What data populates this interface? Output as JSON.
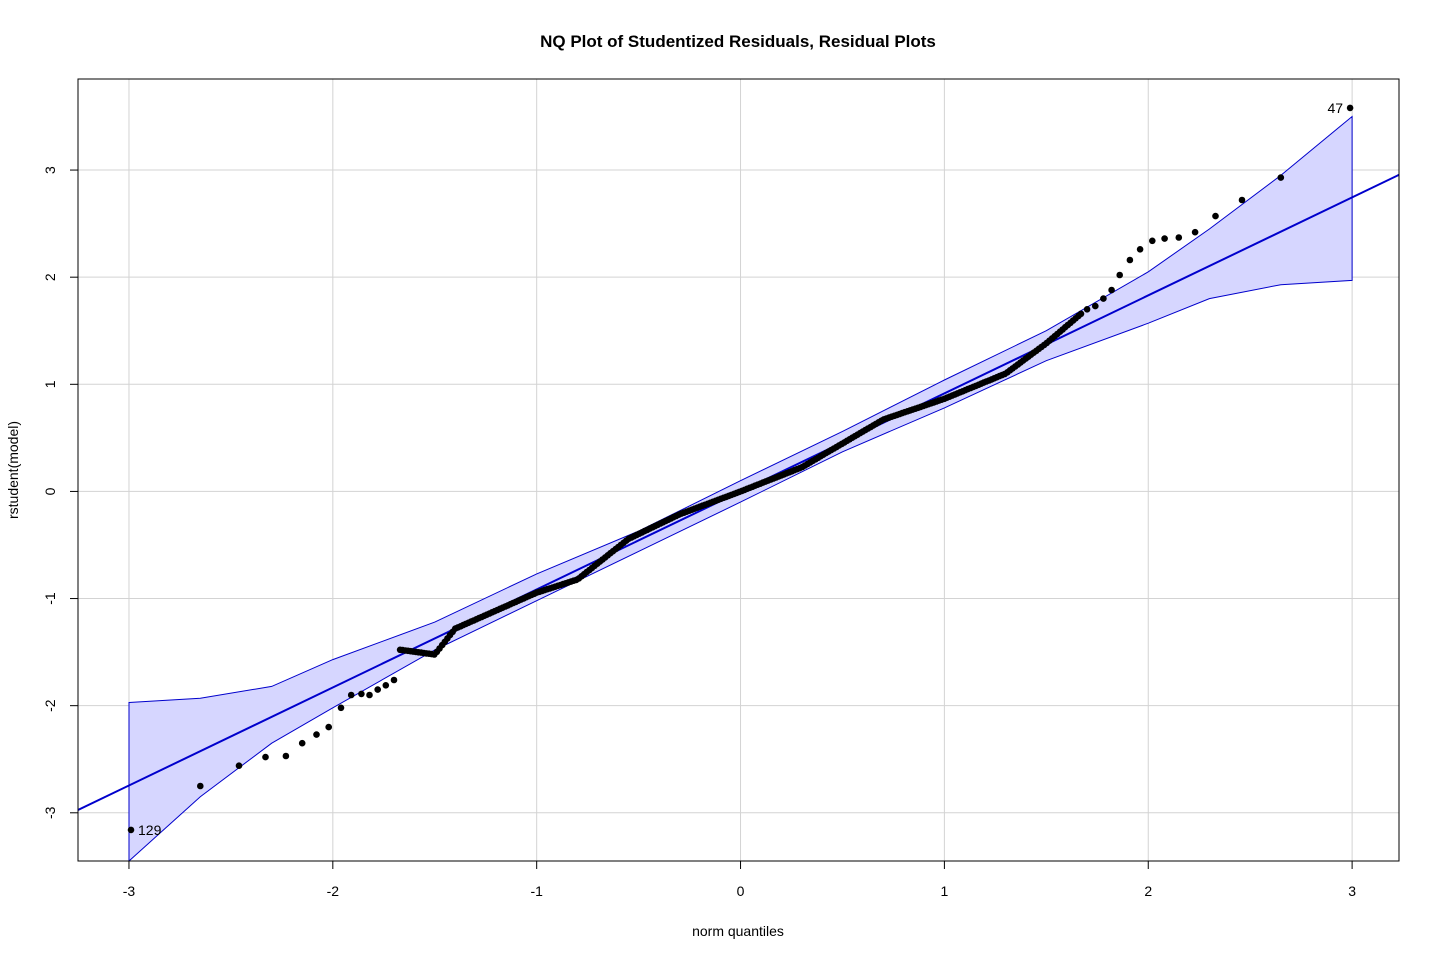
{
  "chart_data": {
    "type": "scatter",
    "title": "NQ Plot of Studentized Residuals, Residual Plots",
    "xlabel": "norm quantiles",
    "ylabel": "rstudent(model)",
    "xlim": [
      -3.25,
      3.23
    ],
    "ylim": [
      -3.45,
      3.85
    ],
    "xticks": [
      -3,
      -2,
      -1,
      0,
      1,
      2,
      3
    ],
    "xtick_labels": [
      "-3",
      "-2",
      "-1",
      "0",
      "1",
      "2",
      "3"
    ],
    "yticks": [
      -3,
      -2,
      -1,
      0,
      1,
      2,
      3
    ],
    "ytick_labels": [
      "-3",
      "-2",
      "-1",
      "0",
      "1",
      "2",
      "3"
    ],
    "grid": true,
    "reference_line": {
      "intercept": 0.0,
      "slope": 0.915,
      "color": "#0000cc"
    },
    "envelope": {
      "color_fill": "#d6d6ff",
      "color_line": "#0000cc",
      "points": [
        {
          "x": -3.0,
          "lower": -3.45,
          "upper": -1.97
        },
        {
          "x": -2.65,
          "lower": -2.85,
          "upper": -1.93
        },
        {
          "x": -2.3,
          "lower": -2.35,
          "upper": -1.82
        },
        {
          "x": -2.0,
          "lower": -2.02,
          "upper": -1.57
        },
        {
          "x": -1.5,
          "lower": -1.48,
          "upper": -1.22
        },
        {
          "x": -1.0,
          "lower": -1.02,
          "upper": -0.77
        },
        {
          "x": -0.5,
          "lower": -0.56,
          "upper": -0.37
        },
        {
          "x": 0.0,
          "lower": -0.1,
          "upper": 0.1
        },
        {
          "x": 0.5,
          "lower": 0.37,
          "upper": 0.56
        },
        {
          "x": 1.0,
          "lower": 0.78,
          "upper": 1.04
        },
        {
          "x": 1.5,
          "lower": 1.22,
          "upper": 1.5
        },
        {
          "x": 2.0,
          "lower": 1.57,
          "upper": 2.05
        },
        {
          "x": 2.3,
          "lower": 1.8,
          "upper": 2.45
        },
        {
          "x": 2.65,
          "lower": 1.93,
          "upper": 2.95
        },
        {
          "x": 3.0,
          "lower": 1.97,
          "upper": 3.5
        }
      ]
    },
    "point_color": "#000000",
    "labeled_points": [
      {
        "label": "47",
        "x": 2.99,
        "y": 3.58
      },
      {
        "label": "129",
        "x": -2.99,
        "y": -3.16
      }
    ],
    "extra_points": [
      {
        "x": -2.99,
        "y": -3.16
      },
      {
        "x": -2.65,
        "y": -2.75
      },
      {
        "x": -2.46,
        "y": -2.56
      },
      {
        "x": -2.33,
        "y": -2.48
      },
      {
        "x": -2.23,
        "y": -2.47
      },
      {
        "x": -2.15,
        "y": -2.35
      },
      {
        "x": -2.08,
        "y": -2.27
      },
      {
        "x": -2.02,
        "y": -2.2
      },
      {
        "x": -1.96,
        "y": -2.02
      },
      {
        "x": -1.91,
        "y": -1.9
      },
      {
        "x": -1.86,
        "y": -1.89
      },
      {
        "x": -1.82,
        "y": -1.9
      },
      {
        "x": -1.78,
        "y": -1.85
      },
      {
        "x": -1.74,
        "y": -1.81
      },
      {
        "x": -1.7,
        "y": -1.76
      },
      {
        "x": 1.7,
        "y": 1.7
      },
      {
        "x": 1.74,
        "y": 1.73
      },
      {
        "x": 1.78,
        "y": 1.8
      },
      {
        "x": 1.82,
        "y": 1.88
      },
      {
        "x": 1.86,
        "y": 2.02
      },
      {
        "x": 1.91,
        "y": 2.16
      },
      {
        "x": 1.96,
        "y": 2.26
      },
      {
        "x": 2.02,
        "y": 2.34
      },
      {
        "x": 2.08,
        "y": 2.36
      },
      {
        "x": 2.15,
        "y": 2.37
      },
      {
        "x": 2.23,
        "y": 2.42
      },
      {
        "x": 2.33,
        "y": 2.57
      },
      {
        "x": 2.46,
        "y": 2.72
      },
      {
        "x": 2.65,
        "y": 2.93
      },
      {
        "x": 2.99,
        "y": 3.58
      }
    ],
    "dense_band": {
      "x_from": -1.67,
      "x_to": 1.67,
      "count": 260,
      "deviation_knots": [
        {
          "x": -1.67,
          "dy": 0.05
        },
        {
          "x": -1.5,
          "dy": -0.15
        },
        {
          "x": -1.4,
          "dy": 0.0
        },
        {
          "x": -1.0,
          "dy": -0.03
        },
        {
          "x": -0.8,
          "dy": -0.09
        },
        {
          "x": -0.55,
          "dy": 0.06
        },
        {
          "x": -0.3,
          "dy": 0.06
        },
        {
          "x": 0.0,
          "dy": 0.0
        },
        {
          "x": 0.3,
          "dy": -0.05
        },
        {
          "x": 0.7,
          "dy": 0.03
        },
        {
          "x": 1.0,
          "dy": -0.05
        },
        {
          "x": 1.3,
          "dy": -0.09
        },
        {
          "x": 1.5,
          "dy": 0.01
        },
        {
          "x": 1.67,
          "dy": 0.13
        }
      ]
    }
  }
}
